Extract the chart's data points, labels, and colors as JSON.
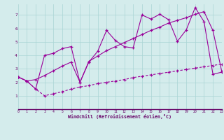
{
  "xlabel": "Windchill (Refroidissement éolien,°C)",
  "background_color": "#d4ecec",
  "line_color": "#990099",
  "grid_color": "#aad4d4",
  "xmin": 0,
  "xmax": 23,
  "ymin": 0,
  "ymax": 7.8,
  "yticks": [
    1,
    2,
    3,
    4,
    5,
    6,
    7
  ],
  "xticks": [
    0,
    1,
    2,
    3,
    4,
    5,
    6,
    7,
    8,
    9,
    10,
    11,
    12,
    13,
    14,
    15,
    16,
    17,
    18,
    19,
    20,
    21,
    22,
    23
  ],
  "line_dashed_x": [
    0,
    1,
    2,
    3,
    4,
    5,
    6,
    7,
    8,
    9,
    10,
    11,
    12,
    13,
    14,
    15,
    16,
    17,
    18,
    19,
    20,
    21,
    22,
    23
  ],
  "line_dashed_y": [
    2.4,
    2.1,
    1.5,
    1.0,
    1.15,
    1.3,
    1.5,
    1.65,
    1.75,
    1.9,
    2.0,
    2.1,
    2.2,
    2.35,
    2.45,
    2.55,
    2.65,
    2.75,
    2.85,
    2.95,
    3.05,
    3.15,
    3.25,
    3.35
  ],
  "line_jagged_x": [
    0,
    1,
    2,
    3,
    4,
    5,
    6,
    7,
    8,
    9,
    10,
    11,
    12,
    13,
    14,
    15,
    16,
    17,
    18,
    19,
    20,
    21,
    22,
    23
  ],
  "line_jagged_y": [
    2.4,
    2.1,
    1.5,
    4.0,
    4.15,
    4.5,
    4.65,
    2.0,
    3.5,
    4.3,
    5.85,
    5.1,
    4.65,
    4.55,
    7.0,
    6.7,
    7.05,
    6.65,
    5.05,
    5.9,
    7.55,
    6.5,
    2.6,
    2.75
  ],
  "line_trend_x": [
    0,
    1,
    2,
    3,
    4,
    5,
    6,
    7,
    8,
    9,
    10,
    11,
    12,
    13,
    14,
    15,
    16,
    17,
    18,
    19,
    20,
    21,
    22,
    23
  ],
  "line_trend_y": [
    2.4,
    2.1,
    2.2,
    2.5,
    2.85,
    3.2,
    3.5,
    2.0,
    3.55,
    3.95,
    4.35,
    4.65,
    4.95,
    5.25,
    5.55,
    5.85,
    6.1,
    6.4,
    6.6,
    6.8,
    7.05,
    7.25,
    5.85,
    2.8
  ]
}
